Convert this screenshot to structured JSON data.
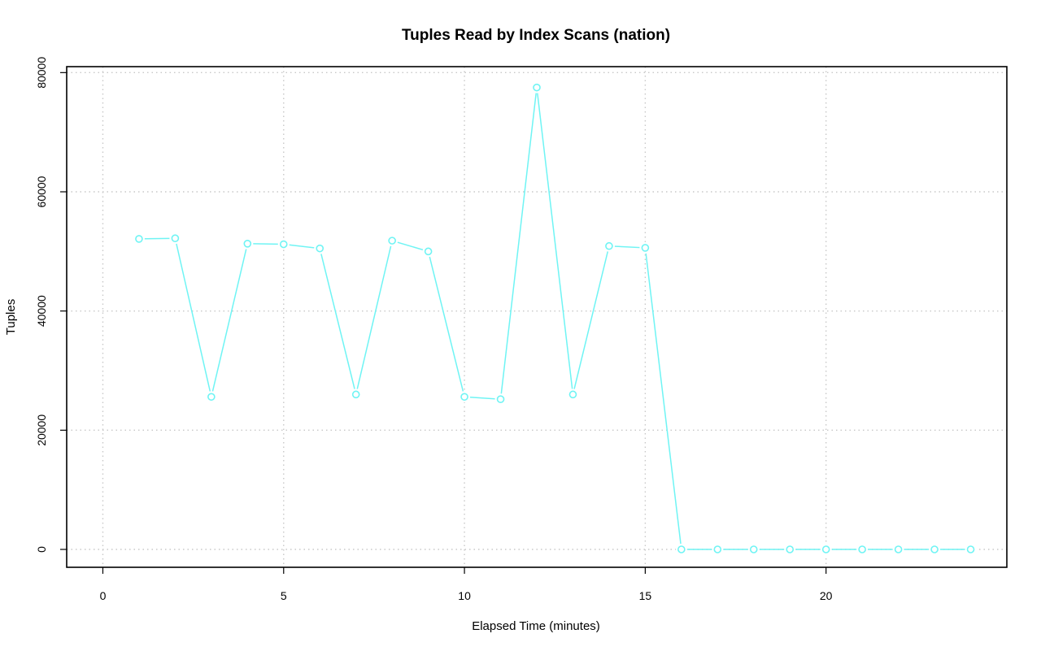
{
  "chart_data": {
    "type": "line",
    "title": "Tuples Read by Index Scans (nation)",
    "xlabel": "Elapsed Time (minutes)",
    "ylabel": "Tuples",
    "xlim": [
      -1,
      25
    ],
    "ylim": [
      -3000,
      81000
    ],
    "xticks": [
      0,
      5,
      10,
      15,
      20
    ],
    "yticks": [
      0,
      20000,
      40000,
      60000,
      80000
    ],
    "grid": true,
    "series": [
      {
        "color": "#6ff4f4",
        "marker": "open-circle",
        "x": [
          1,
          2,
          3,
          4,
          5,
          6,
          7,
          8,
          9,
          10,
          11,
          12,
          13,
          14,
          15,
          16,
          17,
          18,
          19,
          20,
          21,
          22,
          23,
          24
        ],
        "y": [
          52100,
          52200,
          25600,
          51300,
          51200,
          50500,
          26000,
          51800,
          50000,
          25600,
          25200,
          77500,
          26000,
          50900,
          50600,
          0,
          0,
          0,
          0,
          0,
          0,
          0,
          0,
          0
        ]
      }
    ]
  }
}
